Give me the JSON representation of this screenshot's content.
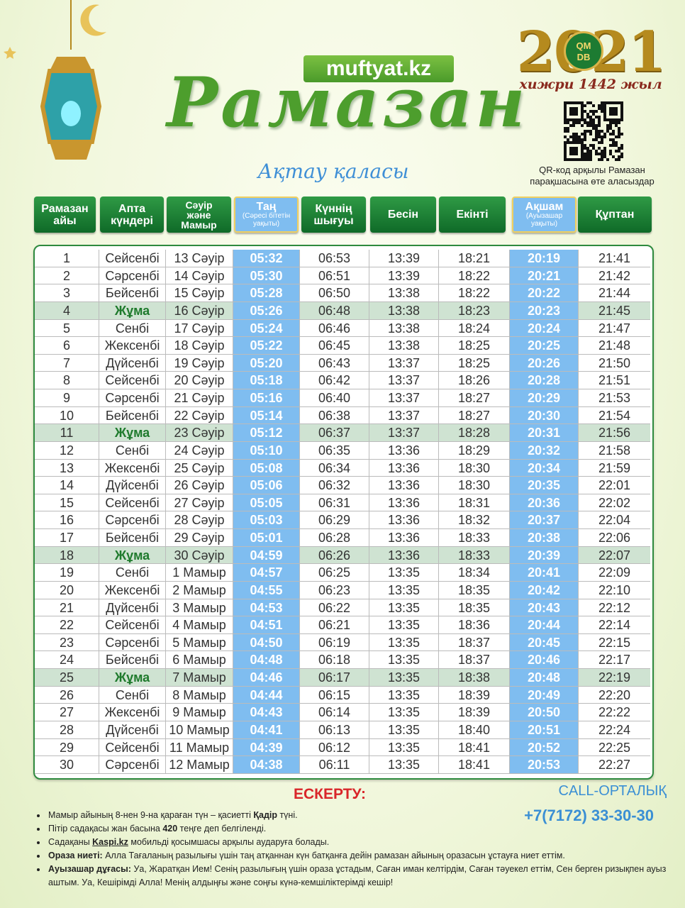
{
  "header": {
    "site": "muftyat.kz",
    "title": "Рамазан",
    "city": "Ақтау қаласы",
    "year": "2021",
    "logo_mark": [
      "QM",
      "DB"
    ],
    "hijri": "хижри 1442 жыл",
    "qr_caption": "QR-код арқылы Рамазан парақшасына өте аласыздар"
  },
  "table": {
    "columns": [
      [
        "Рамазан",
        "айы"
      ],
      [
        "Апта",
        "күндері"
      ],
      [
        "Сәуір",
        "және",
        "Мамыр"
      ],
      [
        "Таң",
        "(Сәресі бітетін уақыты)"
      ],
      [
        "Күннің",
        "шығуы"
      ],
      [
        "Бесін"
      ],
      [
        "Екінті"
      ],
      [
        "Ақшам",
        "(Ауызашар уақыты)"
      ],
      [
        "Құптан"
      ]
    ],
    "rows": [
      [
        "1",
        "Сейсенбі",
        "13 Сәуір",
        "05:32",
        "06:53",
        "13:39",
        "18:21",
        "20:19",
        "21:41"
      ],
      [
        "2",
        "Сәрсенбі",
        "14 Сәуір",
        "05:30",
        "06:51",
        "13:39",
        "18:22",
        "20:21",
        "21:42"
      ],
      [
        "3",
        "Бейсенбі",
        "15 Сәуір",
        "05:28",
        "06:50",
        "13:38",
        "18:22",
        "20:22",
        "21:44"
      ],
      [
        "4",
        "Жұма",
        "16 Сәуір",
        "05:26",
        "06:48",
        "13:38",
        "18:23",
        "20:23",
        "21:45"
      ],
      [
        "5",
        "Сенбі",
        "17 Сәуір",
        "05:24",
        "06:46",
        "13:38",
        "18:24",
        "20:24",
        "21:47"
      ],
      [
        "6",
        "Жексенбі",
        "18 Сәуір",
        "05:22",
        "06:45",
        "13:38",
        "18:25",
        "20:25",
        "21:48"
      ],
      [
        "7",
        "Дүйсенбі",
        "19 Сәуір",
        "05:20",
        "06:43",
        "13:37",
        "18:25",
        "20:26",
        "21:50"
      ],
      [
        "8",
        "Сейсенбі",
        "20 Сәуір",
        "05:18",
        "06:42",
        "13:37",
        "18:26",
        "20:28",
        "21:51"
      ],
      [
        "9",
        "Сәрсенбі",
        "21 Сәуір",
        "05:16",
        "06:40",
        "13:37",
        "18:27",
        "20:29",
        "21:53"
      ],
      [
        "10",
        "Бейсенбі",
        "22 Сәуір",
        "05:14",
        "06:38",
        "13:37",
        "18:27",
        "20:30",
        "21:54"
      ],
      [
        "11",
        "Жұма",
        "23 Сәуір",
        "05:12",
        "06:37",
        "13:37",
        "18:28",
        "20:31",
        "21:56"
      ],
      [
        "12",
        "Сенбі",
        "24 Сәуір",
        "05:10",
        "06:35",
        "13:36",
        "18:29",
        "20:32",
        "21:58"
      ],
      [
        "13",
        "Жексенбі",
        "25 Сәуір",
        "05:08",
        "06:34",
        "13:36",
        "18:30",
        "20:34",
        "21:59"
      ],
      [
        "14",
        "Дүйсенбі",
        "26 Сәуір",
        "05:06",
        "06:32",
        "13:36",
        "18:30",
        "20:35",
        "22:01"
      ],
      [
        "15",
        "Сейсенбі",
        "27 Сәуір",
        "05:05",
        "06:31",
        "13:36",
        "18:31",
        "20:36",
        "22:02"
      ],
      [
        "16",
        "Сәрсенбі",
        "28 Сәуір",
        "05:03",
        "06:29",
        "13:36",
        "18:32",
        "20:37",
        "22:04"
      ],
      [
        "17",
        "Бейсенбі",
        "29 Сәуір",
        "05:01",
        "06:28",
        "13:36",
        "18:33",
        "20:38",
        "22:06"
      ],
      [
        "18",
        "Жұма",
        "30 Сәуір",
        "04:59",
        "06:26",
        "13:36",
        "18:33",
        "20:39",
        "22:07"
      ],
      [
        "19",
        "Сенбі",
        "1 Мамыр",
        "04:57",
        "06:25",
        "13:35",
        "18:34",
        "20:41",
        "22:09"
      ],
      [
        "20",
        "Жексенбі",
        "2 Мамыр",
        "04:55",
        "06:23",
        "13:35",
        "18:35",
        "20:42",
        "22:10"
      ],
      [
        "21",
        "Дүйсенбі",
        "3 Мамыр",
        "04:53",
        "06:22",
        "13:35",
        "18:35",
        "20:43",
        "22:12"
      ],
      [
        "22",
        "Сейсенбі",
        "4 Мамыр",
        "04:51",
        "06:21",
        "13:35",
        "18:36",
        "20:44",
        "22:14"
      ],
      [
        "23",
        "Сәрсенбі",
        "5 Мамыр",
        "04:50",
        "06:19",
        "13:35",
        "18:37",
        "20:45",
        "22:15"
      ],
      [
        "24",
        "Бейсенбі",
        "6 Мамыр",
        "04:48",
        "06:18",
        "13:35",
        "18:37",
        "20:46",
        "22:17"
      ],
      [
        "25",
        "Жұма",
        "7 Мамыр",
        "04:46",
        "06:17",
        "13:35",
        "18:38",
        "20:48",
        "22:19"
      ],
      [
        "26",
        "Сенбі",
        "8 Мамыр",
        "04:44",
        "06:15",
        "13:35",
        "18:39",
        "20:49",
        "22:20"
      ],
      [
        "27",
        "Жексенбі",
        "9 Мамыр",
        "04:43",
        "06:14",
        "13:35",
        "18:39",
        "20:50",
        "22:22"
      ],
      [
        "28",
        "Дүйсенбі",
        "10 Мамыр",
        "04:41",
        "06:13",
        "13:35",
        "18:40",
        "20:51",
        "22:24"
      ],
      [
        "29",
        "Сейсенбі",
        "11 Мамыр",
        "04:39",
        "06:12",
        "13:35",
        "18:41",
        "20:52",
        "22:25"
      ],
      [
        "30",
        "Сәрсенбі",
        "12 Мамыр",
        "04:38",
        "06:11",
        "13:35",
        "18:41",
        "20:53",
        "22:27"
      ]
    ],
    "highlight_day": "Жұма"
  },
  "notes": {
    "title": "ЕСКЕРТУ:",
    "items": [
      [
        "Мамыр айының 8-нен 9-на қараған түн – қасиетті ",
        "Қадір",
        " түні."
      ],
      [
        "Пітір садақасы жан басына ",
        "420",
        " теңге деп белгіленді."
      ],
      [
        "Садақаны ",
        "Kaspi.kz",
        " мобильді қосымшасы арқылы аударуға болады."
      ],
      [
        "",
        "Ораза ниеті:",
        " Алла Тағаланың разылығы үшін таң атқаннан күн батқанға дейін рамазан айының оразасын ұстауға ниет еттім."
      ],
      [
        "",
        "Ауызашар дұғасы:",
        " Уа, Жаратқан Ием! Сенің разылығың үшін ораза ұстадым, Саған иман келтірдім, Саған тәуекел еттім, Сен берген ризықпен ауыз аштым. Уа, Кешірімді Алла! Менің алдыңғы және соңғы күнә-кемшіліктерімді кешір!"
      ]
    ]
  },
  "contact": {
    "label": "CALL-ОРТАЛЫҚ",
    "phone": "+7(7172) 33-30-30"
  }
}
